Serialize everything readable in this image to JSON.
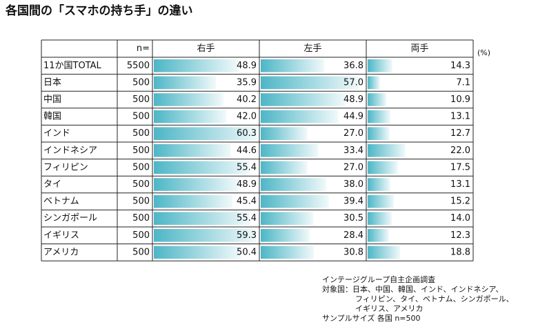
{
  "chart_data": {
    "type": "bartable",
    "title": "各国間の「スマホの持ち手」の違い",
    "n_header": "n=",
    "unit_label": "(%)",
    "categories": [
      "11か国TOTAL",
      "日本",
      "中国",
      "韓国",
      "インド",
      "インドネシア",
      "フィリピン",
      "タイ",
      "ベトナム",
      "シンガポール",
      "イギリス",
      "アメリカ"
    ],
    "n": [
      5500,
      500,
      500,
      500,
      500,
      500,
      500,
      500,
      500,
      500,
      500,
      500
    ],
    "series": [
      {
        "name": "右手",
        "color": "#4db6c6",
        "values": [
          48.9,
          35.9,
          40.2,
          42.0,
          60.3,
          44.6,
          55.4,
          48.9,
          45.4,
          55.4,
          59.3,
          50.4
        ],
        "value_labels": [
          "48.9",
          "35.9",
          "40.2",
          "42.0",
          "60.3",
          "44.6",
          "55.4",
          "48.9",
          "45.4",
          "55.4",
          "59.3",
          "50.4"
        ]
      },
      {
        "name": "左手",
        "color": "#4db6c6",
        "values": [
          36.8,
          57.0,
          48.9,
          44.9,
          27.0,
          33.4,
          27.0,
          38.0,
          39.4,
          30.5,
          28.4,
          30.8
        ],
        "value_labels": [
          "36.8",
          "57.0",
          "48.9",
          "44.9",
          "27.0",
          "33.4",
          "27.0",
          "38.0",
          "39.4",
          "30.5",
          "28.4",
          "30.8"
        ]
      },
      {
        "name": "両手",
        "color": "#4db6c6",
        "values": [
          14.3,
          7.1,
          10.9,
          13.1,
          12.7,
          22.0,
          17.5,
          13.1,
          15.2,
          14.0,
          12.3,
          18.8
        ],
        "value_labels": [
          "14.3",
          "7.1",
          "10.9",
          "13.1",
          "12.7",
          "22.0",
          "17.5",
          "13.1",
          "15.2",
          "14.0",
          "12.3",
          "18.8"
        ]
      }
    ],
    "notes": [
      "インテージグループ自主企画調査",
      "対象国：日本、中国、韓国、インド、インドネシア、",
      "フィリピン、タイ、ベトナム、シンガポール、",
      "イギリス、アメリカ",
      "サンプルサイズ 各国 n=500"
    ]
  }
}
